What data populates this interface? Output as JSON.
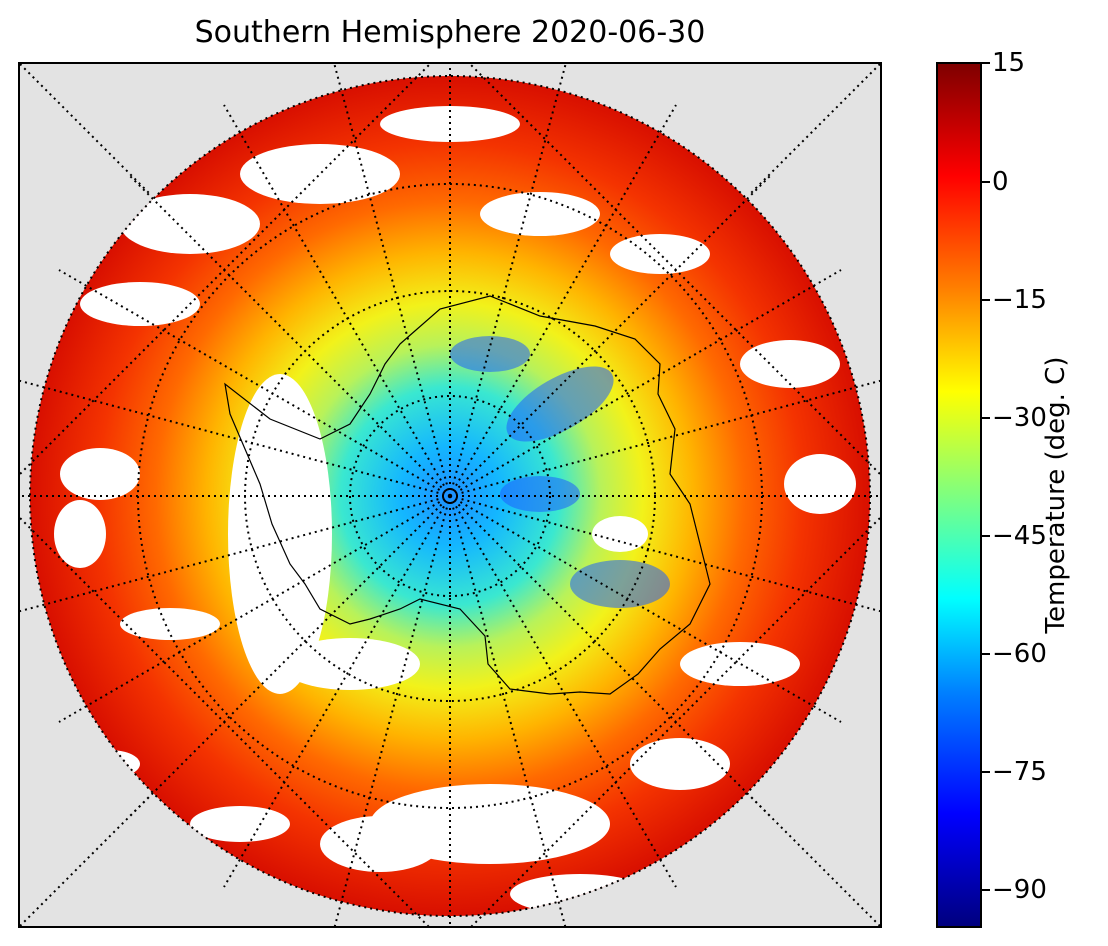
{
  "title": "Southern Hemisphere 2020-06-30",
  "colorbar": {
    "label": "Temperature (deg. C)",
    "ticks": [
      "15",
      "0",
      "−15",
      "−30",
      "−45",
      "−60",
      "−75",
      "−90"
    ],
    "tick_values": [
      15,
      0,
      -15,
      -30,
      -45,
      -60,
      -75,
      -90
    ],
    "range": [
      -95,
      15
    ],
    "colormap": "jet"
  },
  "map": {
    "projection": "south-polar-stereographic",
    "graticule": "dotted",
    "background_color": "#e3e3e3",
    "no_data_color": "#ffffff"
  }
}
